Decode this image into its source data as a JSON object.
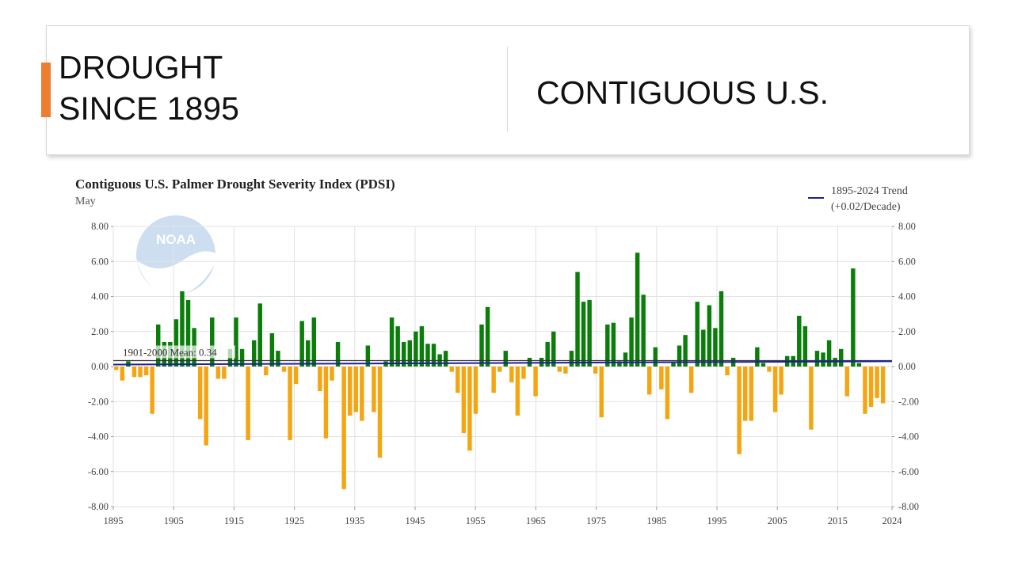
{
  "header": {
    "title_line1": "DROUGHT",
    "title_line2": "SINCE 1895",
    "region": "CONTIGUOUS U.S."
  },
  "colors": {
    "accent": "#ed7d31",
    "positive": "#0a7d0a",
    "negative": "#f5a511",
    "trend": "#1e1ea0",
    "mean": "#333333"
  },
  "icons": {
    "logo": "noaa-logo-icon"
  },
  "chart_data": {
    "type": "bar",
    "title": "Contiguous U.S. Palmer Drought Severity Index (PDSI)",
    "subtitle": "May",
    "legend_label_line1": "1895-2024 Trend",
    "legend_label_line2": "(+0.02/Decade)",
    "legend_position": "top-right",
    "mean_label": "1901-2000 Mean: 0.34",
    "mean_value": 0.34,
    "trend_per_decade": 0.02,
    "ylim": [
      -8,
      8
    ],
    "xlim": [
      1895,
      2024
    ],
    "grid": true,
    "y_ticks": [
      "8.00",
      "6.00",
      "4.00",
      "2.00",
      "0.00",
      "-2.00",
      "-4.00",
      "-6.00",
      "-8.00"
    ],
    "x_ticks": [
      "1895",
      "1905",
      "1915",
      "1925",
      "1935",
      "1945",
      "1955",
      "1965",
      "1975",
      "1985",
      "1995",
      "2005",
      "2015",
      "2024"
    ],
    "start_year": 1895,
    "values": [
      -0.2,
      -0.8,
      0.3,
      -0.6,
      -0.6,
      -0.5,
      -2.7,
      2.4,
      1.4,
      1.4,
      2.7,
      4.3,
      3.8,
      2.2,
      -3.0,
      -4.5,
      2.8,
      -0.7,
      -0.7,
      1.0,
      2.8,
      1.0,
      -4.2,
      1.5,
      3.6,
      -0.5,
      1.9,
      0.9,
      -0.3,
      -4.2,
      -1.0,
      2.6,
      1.5,
      2.8,
      -1.4,
      -4.1,
      -0.8,
      1.4,
      -7.0,
      -2.8,
      -2.6,
      -3.1,
      1.2,
      -2.6,
      -5.2,
      0.3,
      2.8,
      2.3,
      1.4,
      1.5,
      2.0,
      2.3,
      1.3,
      1.3,
      0.7,
      0.9,
      -0.3,
      -1.5,
      -3.8,
      -4.8,
      -2.7,
      2.4,
      3.4,
      -1.5,
      -0.3,
      0.9,
      -0.9,
      -2.8,
      -0.7,
      0.5,
      -1.7,
      0.5,
      1.4,
      2.0,
      -0.3,
      -0.4,
      0.9,
      5.4,
      3.7,
      3.8,
      -0.4,
      -2.9,
      2.4,
      2.5,
      0.3,
      0.8,
      2.8,
      6.5,
      4.1,
      -1.6,
      1.1,
      -1.3,
      -3.0,
      0.2,
      1.2,
      1.8,
      -1.5,
      3.7,
      2.1,
      3.5,
      2.2,
      4.3,
      -0.5,
      0.5,
      -5.0,
      -3.1,
      -3.1,
      1.1,
      0.2,
      -0.3,
      -2.6,
      -1.6,
      0.6,
      0.6,
      2.9,
      2.3,
      -3.6,
      0.9,
      0.8,
      1.5,
      0.5,
      1.0,
      -1.7,
      5.6,
      0.2,
      -2.7,
      -2.3,
      -1.8,
      -2.1
    ]
  }
}
